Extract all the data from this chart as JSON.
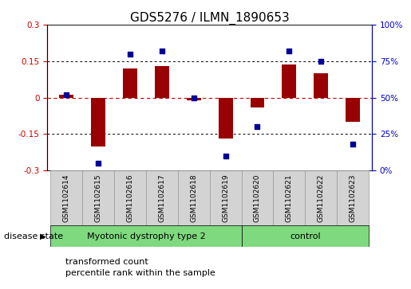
{
  "title": "GDS5276 / ILMN_1890653",
  "samples": [
    "GSM1102614",
    "GSM1102615",
    "GSM1102616",
    "GSM1102617",
    "GSM1102618",
    "GSM1102619",
    "GSM1102620",
    "GSM1102621",
    "GSM1102622",
    "GSM1102623"
  ],
  "red_bars": [
    0.01,
    -0.2,
    0.12,
    0.13,
    -0.01,
    -0.17,
    -0.04,
    0.135,
    0.1,
    -0.1
  ],
  "blue_dots": [
    52,
    5,
    80,
    82,
    50,
    10,
    30,
    82,
    75,
    18
  ],
  "ylim_left": [
    -0.3,
    0.3
  ],
  "ylim_right": [
    0,
    100
  ],
  "yticks_left": [
    -0.3,
    -0.15,
    0.0,
    0.15,
    0.3
  ],
  "yticks_right": [
    0,
    25,
    50,
    75,
    100
  ],
  "ytick_labels_left": [
    "-0.3",
    "-0.15",
    "0",
    "0.15",
    "0.3"
  ],
  "ytick_labels_right": [
    "0%",
    "25%",
    "50%",
    "75%",
    "100%"
  ],
  "group1_label": "Myotonic dystrophy type 2",
  "group2_label": "control",
  "group1_count": 6,
  "group2_count": 4,
  "disease_label": "disease state",
  "legend_red": "transformed count",
  "legend_blue": "percentile rank within the sample",
  "bar_color": "#990000",
  "dot_color": "#000099",
  "group_color": "#7FD97F",
  "bar_bg_color": "#D3D3D3",
  "bar_border_color": "#999999",
  "zero_line_color": "#CC0000",
  "title_fontsize": 11,
  "tick_fontsize": 7.5,
  "sample_fontsize": 6.5,
  "group_fontsize": 8,
  "legend_fontsize": 8,
  "disease_fontsize": 8
}
